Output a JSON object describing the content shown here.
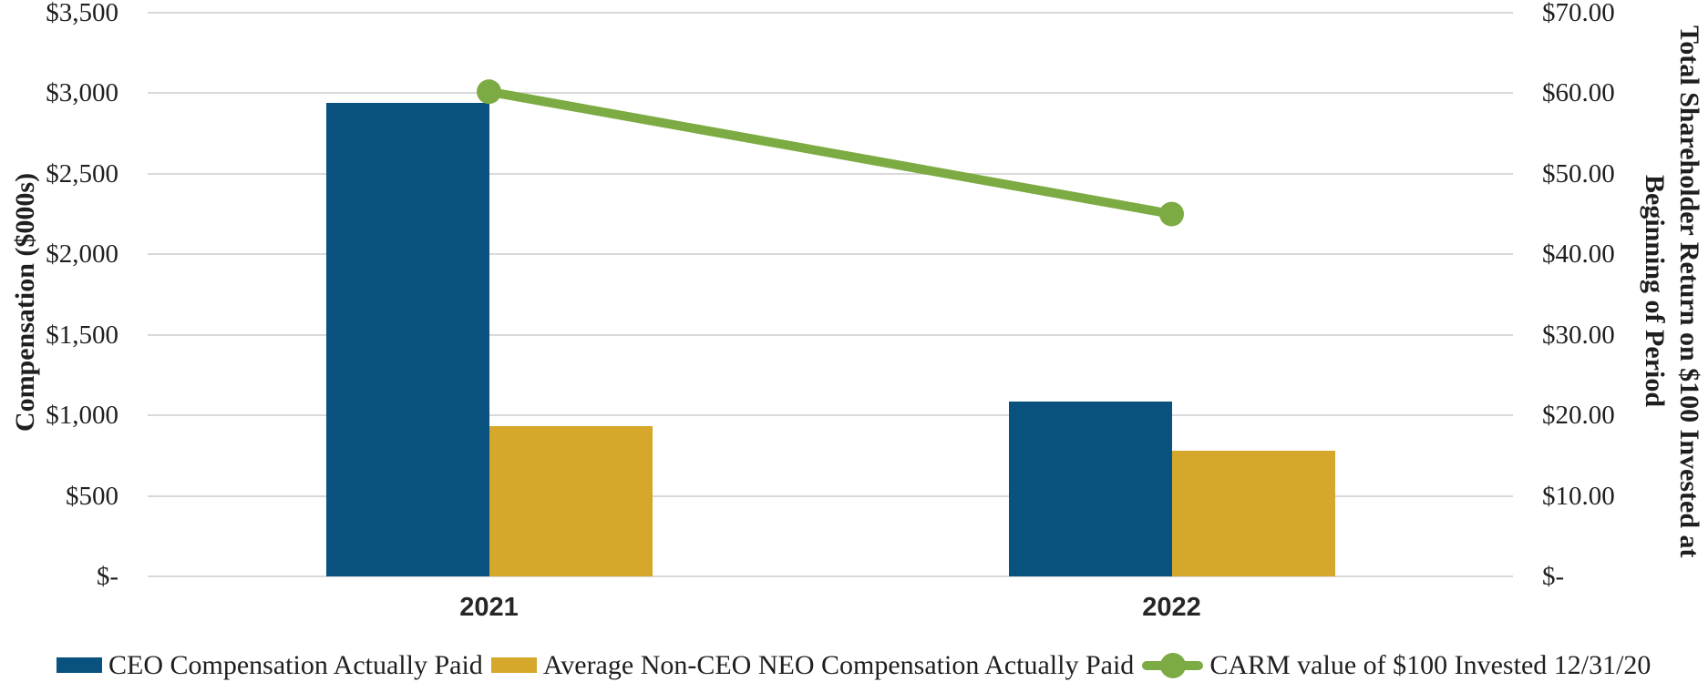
{
  "chart_data": {
    "type": "bar",
    "subtype": "bar-line-combo",
    "categories": [
      "2021",
      "2022"
    ],
    "series": [
      {
        "name": "CEO Compensation Actually Paid",
        "type": "bar",
        "axis": "left",
        "color": "#09517f",
        "values": [
          2940,
          1085
        ]
      },
      {
        "name": "Average Non-CEO NEO Compensation Actually Paid",
        "type": "bar",
        "axis": "left",
        "color": "#d5a72b",
        "values": [
          935,
          780
        ]
      },
      {
        "name": "CARM value of $100 Invested 12/31/20",
        "type": "line",
        "axis": "right",
        "color": "#7dab43",
        "values": [
          60.2,
          45.0
        ]
      }
    ],
    "left_axis": {
      "title": "Compensation ($000s)",
      "min": 0,
      "max": 3500,
      "tick_step": 500,
      "tick_labels": [
        "$-",
        "$500",
        "$1,000",
        "$1,500",
        "$2,000",
        "$2,500",
        "$3,000",
        "$3,500"
      ]
    },
    "right_axis": {
      "title_line1": "Total Shareholder Return on $100 Invested at",
      "title_line2": "Beginning of Period",
      "min": 0,
      "max": 70,
      "tick_step": 10,
      "tick_labels": [
        "$-",
        "$10.00",
        "$20.00",
        "$30.00",
        "$40.00",
        "$50.00",
        "$60.00",
        "$70.00"
      ]
    },
    "grid": true,
    "legend_position": "bottom",
    "gridline_color": "#d9d9d9",
    "background_color": "#ffffff",
    "text_color": "#1f1f1f"
  }
}
